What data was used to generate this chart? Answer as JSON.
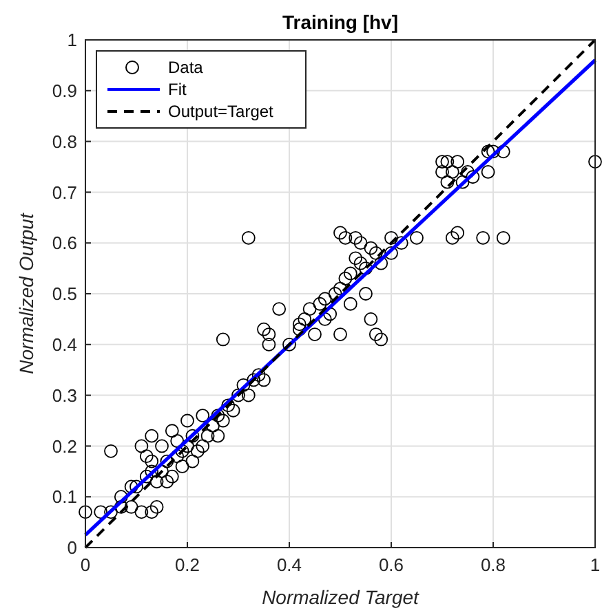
{
  "chart_data": {
    "type": "scatter",
    "title": "Training [hv]",
    "xlabel": "Normalized Target",
    "ylabel": "Normalized Output",
    "xlim": [
      0,
      1
    ],
    "ylim": [
      0,
      1
    ],
    "xticks": [
      0,
      0.2,
      0.4,
      0.6,
      0.8,
      1
    ],
    "yticks": [
      0,
      0.1,
      0.2,
      0.3,
      0.4,
      0.5,
      0.6,
      0.7,
      0.8,
      0.9,
      1
    ],
    "grid": true,
    "legend": "top left",
    "series": [
      {
        "name": "Data",
        "marker": "circle",
        "color": "#000000",
        "x": [
          0,
          0.03,
          0.05,
          0.07,
          0.09,
          0.11,
          0.13,
          0.14,
          0.05,
          0.09,
          0.1,
          0.12,
          0.13,
          0.14,
          0.15,
          0.16,
          0.17,
          0.18,
          0.17,
          0.19,
          0.2,
          0.21,
          0.22,
          0.23,
          0.24,
          0.25,
          0.26,
          0.26,
          0.27,
          0.28,
          0.29,
          0.3,
          0.31,
          0.32,
          0.33,
          0.34,
          0.35,
          0.11,
          0.12,
          0.13,
          0.15,
          0.2,
          0.21,
          0.23,
          0.13,
          0.16,
          0.18,
          0.19,
          0.07,
          0.32,
          0.27,
          0.35,
          0.36,
          0.36,
          0.38,
          0.4,
          0.42,
          0.43,
          0.44,
          0.45,
          0.46,
          0.47,
          0.48,
          0.49,
          0.5,
          0.51,
          0.52,
          0.52,
          0.53,
          0.54,
          0.55,
          0.56,
          0.57,
          0.58,
          0.55,
          0.56,
          0.5,
          0.57,
          0.58,
          0.51,
          0.5,
          0.53,
          0.6,
          0.62,
          0.65,
          0.42,
          0.47,
          0.54,
          0.6,
          0.7,
          0.71,
          0.73,
          0.7,
          0.72,
          0.74,
          0.75,
          0.71,
          0.72,
          0.73,
          0.78,
          0.82,
          0.79,
          0.79,
          0.8,
          0.82,
          1,
          0.76
        ],
        "values": [
          0.07,
          0.07,
          0.07,
          0.08,
          0.08,
          0.07,
          0.07,
          0.08,
          0.19,
          0.12,
          0.12,
          0.14,
          0.15,
          0.13,
          0.15,
          0.17,
          0.14,
          0.18,
          0.23,
          0.16,
          0.2,
          0.22,
          0.19,
          0.2,
          0.22,
          0.24,
          0.22,
          0.26,
          0.25,
          0.28,
          0.27,
          0.3,
          0.32,
          0.3,
          0.33,
          0.34,
          0.33,
          0.2,
          0.18,
          0.17,
          0.2,
          0.25,
          0.17,
          0.26,
          0.22,
          0.13,
          0.21,
          0.19,
          0.1,
          0.61,
          0.41,
          0.43,
          0.42,
          0.4,
          0.47,
          0.4,
          0.44,
          0.45,
          0.47,
          0.42,
          0.48,
          0.49,
          0.46,
          0.5,
          0.51,
          0.53,
          0.54,
          0.48,
          0.57,
          0.56,
          0.55,
          0.59,
          0.58,
          0.56,
          0.5,
          0.45,
          0.42,
          0.42,
          0.41,
          0.61,
          0.62,
          0.61,
          0.61,
          0.6,
          0.61,
          0.43,
          0.45,
          0.6,
          0.58,
          0.76,
          0.76,
          0.76,
          0.74,
          0.74,
          0.72,
          0.74,
          0.72,
          0.61,
          0.62,
          0.61,
          0.61,
          0.74,
          0.78,
          0.78,
          0.78,
          0.76,
          0.73
        ]
      },
      {
        "name": "Fit",
        "type": "line",
        "color": "#0000ff",
        "line_style": "solid",
        "x": [
          0,
          1
        ],
        "values": [
          0.025,
          0.96
        ]
      },
      {
        "name": "Output=Target",
        "type": "line",
        "color": "#000000",
        "line_style": "dashed",
        "x": [
          0,
          1
        ],
        "values": [
          0,
          1
        ]
      }
    ]
  }
}
